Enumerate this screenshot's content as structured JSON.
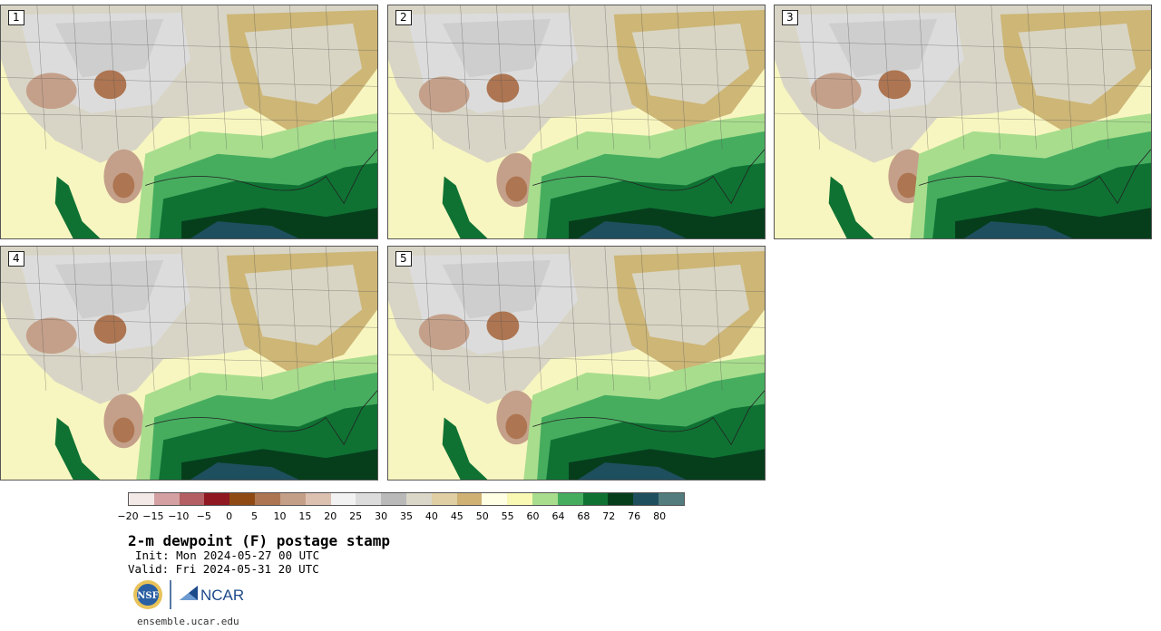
{
  "stamps": [
    {
      "label": "1"
    },
    {
      "label": "2"
    },
    {
      "label": "3"
    },
    {
      "label": "4"
    },
    {
      "label": "5"
    }
  ],
  "colorbar": {
    "colors": [
      "#f3e9e7",
      "#d4a0a2",
      "#b35f63",
      "#8f1821",
      "#8f4a14",
      "#ad7551",
      "#c49f87",
      "#dcc0b0",
      "#f2f2f2",
      "#dcdcdc",
      "#b9b9b9",
      "#dad7c9",
      "#dfcfa2",
      "#cfb173",
      "#ffffe3",
      "#f9f9b3",
      "#a8dd8d",
      "#46ad5f",
      "#0f7233",
      "#063e1c",
      "#1e4f5e",
      "#527c7d"
    ],
    "ticks": [
      "−20",
      "−15",
      "−10",
      "−5",
      "0",
      "5",
      "10",
      "15",
      "20",
      "25",
      "30",
      "35",
      "40",
      "45",
      "50",
      "55",
      "60",
      "64",
      "68",
      "72",
      "76",
      "80"
    ]
  },
  "title": "2-m dewpoint (F) postage stamp",
  "init": "Init: Mon 2024-05-27 00 UTC",
  "valid": "Valid: Fri 2024-05-31 20 UTC",
  "logos": {
    "nsf": "NSF",
    "ncar": "NCAR"
  },
  "website": "ensemble.ucar.edu"
}
